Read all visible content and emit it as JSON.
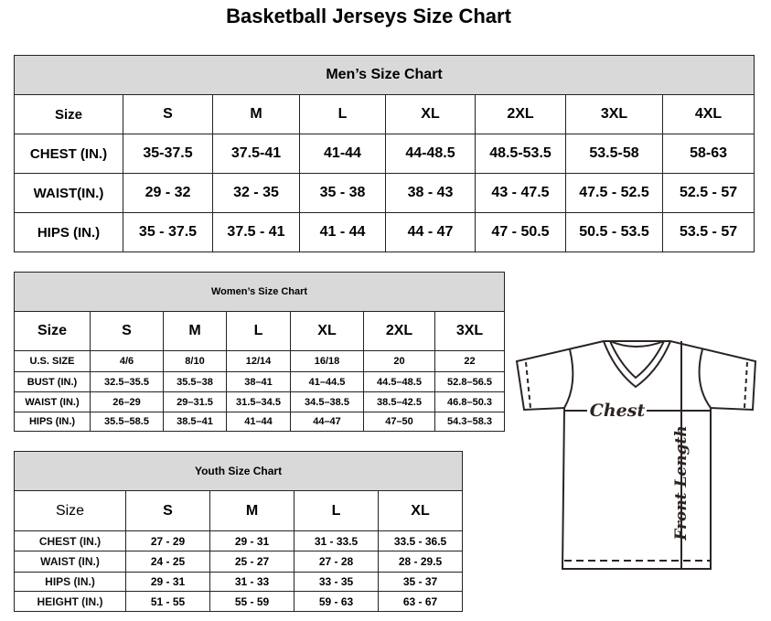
{
  "title": "Basketball Jerseys Size Chart",
  "men": {
    "heading": "Men’s Size Chart",
    "sizes": [
      "Size",
      "S",
      "M",
      "L",
      "XL",
      "2XL",
      "3XL",
      "4XL"
    ],
    "rows": [
      [
        "CHEST (IN.)",
        "35-37.5",
        "37.5-41",
        "41-44",
        "44-48.5",
        "48.5-53.5",
        "53.5-58",
        "58-63"
      ],
      [
        "WAIST(IN.)",
        "29 - 32",
        "32 - 35",
        "35 - 38",
        "38 - 43",
        "43 - 47.5",
        "47.5 - 52.5",
        "52.5 - 57"
      ],
      [
        "HIPS (IN.)",
        "35 - 37.5",
        "37.5 - 41",
        "41 - 44",
        "44 - 47",
        "47 - 50.5",
        "50.5 - 53.5",
        "53.5 - 57"
      ]
    ]
  },
  "women": {
    "heading": "Women’s Size Chart",
    "sizes": [
      "Size",
      "S",
      "M",
      "L",
      "XL",
      "2XL",
      "3XL"
    ],
    "rows": [
      [
        "U.S. SIZE",
        "4/6",
        "8/10",
        "12/14",
        "16/18",
        "20",
        "22"
      ],
      [
        "BUST (IN.)",
        "32.5–35.5",
        "35.5–38",
        "38–41",
        "41–44.5",
        "44.5–48.5",
        "52.8–56.5"
      ],
      [
        "WAIST (IN.)",
        "26–29",
        "29–31.5",
        "31.5–34.5",
        "34.5–38.5",
        "38.5–42.5",
        "46.8–50.3"
      ],
      [
        "HIPS (IN.)",
        "35.5–58.5",
        "38.5–41",
        "41–44",
        "44–47",
        "47–50",
        "54.3–58.3"
      ]
    ]
  },
  "youth": {
    "heading": "Youth Size Chart",
    "sizes": [
      "Size",
      "S",
      "M",
      "L",
      "XL"
    ],
    "rows": [
      [
        "CHEST (IN.)",
        "27 - 29",
        "29 - 31",
        "31 - 33.5",
        "33.5 - 36.5"
      ],
      [
        "WAIST (IN.)",
        "24 - 25",
        "25 - 27",
        "27 - 28",
        "28 - 29.5"
      ],
      [
        "HIPS (IN.)",
        "29 - 31",
        "31 - 33",
        "33 - 35",
        "35 - 37"
      ],
      [
        "HEIGHT (IN.)",
        "51 - 55",
        "55 - 59",
        "59 - 63",
        "63 - 67"
      ]
    ]
  },
  "diagram": {
    "chest_label": "Chest",
    "length_label": "Front Length",
    "line_color": "#2b2422"
  }
}
